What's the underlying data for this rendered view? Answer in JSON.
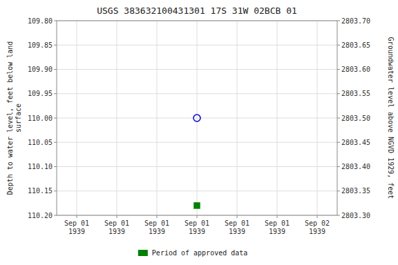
{
  "chart_data": {
    "type": "scatter",
    "title": "USGS 383632100431301 17S 31W 02BCB 01",
    "categories": [
      "Sep 01\n1939",
      "Sep 01\n1939",
      "Sep 01\n1939",
      "Sep 01\n1939",
      "Sep 01\n1939",
      "Sep 01\n1939",
      "Sep 02\n1939"
    ],
    "y_label": "Depth to water level, feet below land\nsurface",
    "y2_label": "Groundwater level above NGVD 1929, feet",
    "series": [
      {
        "color": "#0000cd",
        "marker": "circle-open",
        "values": [
          null,
          null,
          null,
          110,
          null,
          null,
          null
        ]
      },
      {
        "name": "Period of approved data",
        "color": "#008000",
        "marker": "square",
        "values": [
          null,
          null,
          null,
          110.18,
          null,
          null,
          null
        ]
      }
    ],
    "ylim": [
      110.2,
      109.8
    ],
    "yticks": [
      {
        "value": 109.8,
        "label": "109.80"
      },
      {
        "value": 109.85,
        "label": "109.85"
      },
      {
        "value": 109.9,
        "label": "109.90"
      },
      {
        "value": 109.95,
        "label": "109.95"
      },
      {
        "value": 110,
        "label": "110.00"
      },
      {
        "value": 110.05,
        "label": "110.05"
      },
      {
        "value": 110.1,
        "label": "110.10"
      },
      {
        "value": 110.15,
        "label": "110.15"
      },
      {
        "value": 110.2,
        "label": "110.20"
      }
    ],
    "y2lim": [
      2803.3,
      2803.7
    ],
    "y2ticks": [
      {
        "value": 2803.7,
        "label": "2803.70"
      },
      {
        "value": 2803.65,
        "label": "2803.65"
      },
      {
        "value": 2803.6,
        "label": "2803.60"
      },
      {
        "value": 2803.55,
        "label": "2803.55"
      },
      {
        "value": 2803.5,
        "label": "2803.50"
      },
      {
        "value": 2803.45,
        "label": "2803.45"
      },
      {
        "value": 2803.4,
        "label": "2803.40"
      },
      {
        "value": 2803.35,
        "label": "2803.35"
      },
      {
        "value": 2803.3,
        "label": "2803.30"
      }
    ],
    "grid": true,
    "legend": "bottom"
  }
}
